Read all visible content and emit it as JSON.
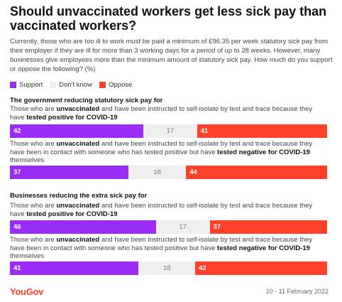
{
  "header": {
    "title": "Should unvaccinated workers get less sick pay than vaccinated workers?",
    "subtitle": "Currently, those who are too ill to work must be paid a minimum of £96.35 per week statutory sick pay from their employer if they are ill for more than 3 working days for a period of up to 28 weeks. However, many businesses give employees more than the minimum amount of statutory sick pay. How much do you support or oppose the following? (%)"
  },
  "colors": {
    "support": "#9b2cf5",
    "dont_know": "#efefef",
    "oppose": "#ff412c"
  },
  "legend": {
    "support": "Support",
    "dont_know": "Don't know",
    "oppose": "Oppose"
  },
  "sections": [
    {
      "title": "The government reducing statutory sick pay for",
      "rows": [
        {
          "label_parts": [
            "Those who are ",
            "unvaccinated",
            " and have been instructed to self-isolate by test and trace because they have ",
            "tested positive for COVID-19",
            ""
          ],
          "support": 42,
          "dont_know": 17,
          "oppose": 41
        },
        {
          "label_parts": [
            "Those who are ",
            "unvaccinated",
            " and have been instructed to self-isolate by test and trace because they have been in contact with someone who has tested positive but have ",
            "tested negative for COVID-19",
            " themselves"
          ],
          "support": 37,
          "dont_know": 18,
          "oppose": 44
        }
      ]
    },
    {
      "title": "Businesses reducing the extra sick pay for",
      "rows": [
        {
          "label_parts": [
            "Those who are ",
            "unvaccinated",
            " and have been instructed to self-isolate by test and trace because they have ",
            "tested positive for COVID-19",
            ""
          ],
          "support": 46,
          "dont_know": 17,
          "oppose": 37
        },
        {
          "label_parts": [
            "Those who are ",
            "unvaccinated",
            " and have been instructed to self-isolate by test and trace because they have been in contact with someone who has tested positive but have ",
            "tested negative for COVID-19",
            " themselves"
          ],
          "support": 41,
          "dont_know": 18,
          "oppose": 42
        }
      ]
    }
  ],
  "chart_data": {
    "type": "bar",
    "stacked": true,
    "orientation": "horizontal",
    "title": "Should unvaccinated workers get less sick pay than vaccinated workers?",
    "categories": [
      "The government reducing statutory sick pay for - unvaccinated, tested positive for COVID-19",
      "The government reducing statutory sick pay for - unvaccinated, contact, tested negative for COVID-19",
      "Businesses reducing the extra sick pay for - unvaccinated, tested positive for COVID-19",
      "Businesses reducing the extra sick pay for - unvaccinated, contact, tested negative for COVID-19"
    ],
    "series": [
      {
        "name": "Support",
        "values": [
          42,
          37,
          46,
          41
        ]
      },
      {
        "name": "Don't know",
        "values": [
          17,
          18,
          17,
          18
        ]
      },
      {
        "name": "Oppose",
        "values": [
          41,
          44,
          37,
          42
        ]
      }
    ],
    "legend_position": "top-left"
  },
  "footer": {
    "brand": "YouGov",
    "date": "10 - 11 February 2022"
  }
}
